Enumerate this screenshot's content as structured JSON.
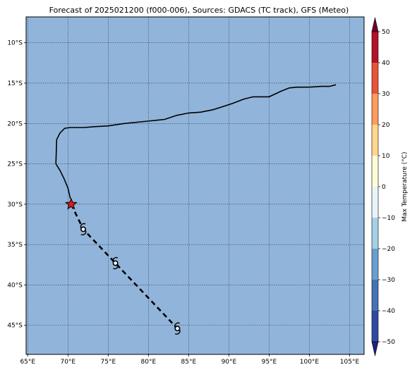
{
  "title": "Forecast of 2025021200 (f000-006), Sources: GDACS (TC track), GFS (Meteo)",
  "map": {
    "lon_range": [
      64.8,
      106.8
    ],
    "lat_range": [
      -48.6,
      -6.8
    ],
    "ocean_color": "#91b5da",
    "grid": true,
    "x_ticks": [
      {
        "value": 65,
        "label": "65°E"
      },
      {
        "value": 70,
        "label": "70°E"
      },
      {
        "value": 75,
        "label": "75°E"
      },
      {
        "value": 80,
        "label": "80°E"
      },
      {
        "value": 85,
        "label": "85°E"
      },
      {
        "value": 90,
        "label": "90°E"
      },
      {
        "value": 95,
        "label": "95°E"
      },
      {
        "value": 100,
        "label": "100°E"
      },
      {
        "value": 105,
        "label": "105°E"
      }
    ],
    "y_ticks": [
      {
        "value": -10,
        "label": "10°S"
      },
      {
        "value": -15,
        "label": "15°S"
      },
      {
        "value": -20,
        "label": "20°S"
      },
      {
        "value": -25,
        "label": "25°S"
      },
      {
        "value": -30,
        "label": "30°S"
      },
      {
        "value": -35,
        "label": "35°S"
      },
      {
        "value": -40,
        "label": "40°S"
      },
      {
        "value": -45,
        "label": "45°S"
      }
    ]
  },
  "chart_data": {
    "type": "map",
    "cone_outline": [
      [
        68.5,
        -25.0
      ],
      [
        68.6,
        -22.0
      ],
      [
        69.0,
        -21.2
      ],
      [
        69.6,
        -20.6
      ],
      [
        70.3,
        -20.5
      ],
      [
        72.0,
        -20.5
      ],
      [
        73.3,
        -20.4
      ],
      [
        75.0,
        -20.3
      ],
      [
        77.0,
        -20.0
      ],
      [
        79.0,
        -19.8
      ],
      [
        81.0,
        -19.6
      ],
      [
        82.0,
        -19.5
      ],
      [
        83.5,
        -19.0
      ],
      [
        85.0,
        -18.7
      ],
      [
        86.5,
        -18.6
      ],
      [
        88.0,
        -18.3
      ],
      [
        89.0,
        -18.0
      ],
      [
        90.5,
        -17.5
      ],
      [
        91.8,
        -17.0
      ],
      [
        93.0,
        -16.7
      ],
      [
        94.5,
        -16.7
      ],
      [
        95.0,
        -16.7
      ],
      [
        96.5,
        -16.0
      ],
      [
        97.5,
        -15.6
      ],
      [
        98.5,
        -15.5
      ],
      [
        100.0,
        -15.5
      ],
      [
        101.5,
        -15.4
      ],
      [
        102.5,
        -15.4
      ],
      [
        103.3,
        -15.2
      ]
    ],
    "cone_outline_lower": [
      [
        68.5,
        -25.0
      ],
      [
        69.0,
        -25.8
      ],
      [
        69.5,
        -26.8
      ],
      [
        70.0,
        -28.0
      ],
      [
        70.3,
        -29.3
      ]
    ],
    "current_position": {
      "lon": 70.4,
      "lat": -30.0,
      "marker": "star",
      "color": "#e31a1c"
    },
    "forecast_track": [
      {
        "lon": 70.4,
        "lat": -30.0
      },
      {
        "lon": 71.9,
        "lat": -33.1
      },
      {
        "lon": 75.9,
        "lat": -37.3
      },
      {
        "lon": 83.6,
        "lat": -45.4
      }
    ],
    "storm_symbols": [
      {
        "lon": 71.9,
        "lat": -33.1
      },
      {
        "lon": 75.9,
        "lat": -37.3
      },
      {
        "lon": 83.6,
        "lat": -45.4
      }
    ]
  },
  "colorbar": {
    "label": "Max Temperature (°C)",
    "min": -50,
    "max": 50,
    "step": 10,
    "ticks": [
      50,
      40,
      30,
      20,
      10,
      0,
      -10,
      -20,
      -30,
      -40,
      -50
    ],
    "tick_labels": [
      "50",
      "40",
      "30",
      "20",
      "10",
      "0",
      "−10",
      "−20",
      "−30",
      "−40",
      "−50"
    ],
    "colors": [
      "#23227a",
      "#2f4aa1",
      "#4472b4",
      "#6a9ed0",
      "#a5cfe5",
      "#e7f4fa",
      "#fffbd6",
      "#fed68e",
      "#fc9c5d",
      "#e8543a",
      "#b11227",
      "#750026"
    ]
  }
}
